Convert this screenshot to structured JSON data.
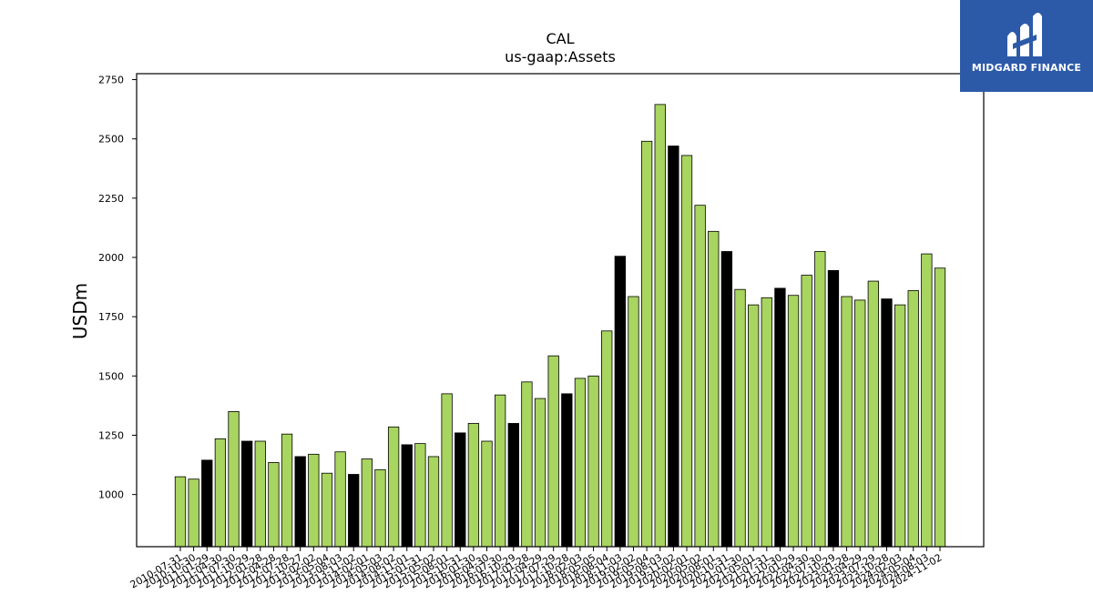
{
  "chart_data": {
    "type": "bar",
    "title": "CAL",
    "subtitle": "us-gaap:Assets",
    "xlabel": "",
    "ylabel": "USDm",
    "ylim": [
      780,
      2775
    ],
    "yticks": [
      1000,
      1250,
      1500,
      1750,
      2000,
      2250,
      2500,
      2750
    ],
    "grid": false,
    "colors": {
      "quarterly": "#a8d460",
      "annual": "#000000",
      "edge": "#000000"
    },
    "categories": [
      "2010-07-31",
      "2010-10-30",
      "2011-01-29",
      "2011-04-30",
      "2011-07-30",
      "2011-10-29",
      "2012-01-28",
      "2012-04-28",
      "2012-07-28",
      "2012-10-27",
      "2013-02-02",
      "2013-05-04",
      "2013-08-03",
      "2013-11-02",
      "2014-02-01",
      "2014-05-03",
      "2014-08-02",
      "2014-11-01",
      "2015-01-31",
      "2015-05-02",
      "2015-08-01",
      "2015-10-31",
      "2016-01-30",
      "2016-04-30",
      "2016-07-30",
      "2016-10-29",
      "2017-01-28",
      "2017-04-29",
      "2017-07-29",
      "2017-10-28",
      "2018-02-03",
      "2018-05-05",
      "2018-08-04",
      "2018-11-03",
      "2019-02-02",
      "2019-05-04",
      "2019-08-03",
      "2019-11-02",
      "2020-02-01",
      "2020-05-02",
      "2020-08-01",
      "2020-10-31",
      "2021-01-30",
      "2021-05-01",
      "2021-07-31",
      "2021-10-30",
      "2022-01-29",
      "2022-04-30",
      "2022-07-30",
      "2022-10-29",
      "2023-01-28",
      "2023-04-29",
      "2023-07-29",
      "2023-10-28",
      "2024-02-03",
      "2024-05-04",
      "2024-08-03",
      "2024-11-02"
    ],
    "values": [
      1075,
      1065,
      1145,
      1235,
      1350,
      1225,
      1225,
      1135,
      1255,
      1160,
      1170,
      1090,
      1180,
      1085,
      1150,
      1105,
      1285,
      1210,
      1215,
      1160,
      1425,
      1260,
      1300,
      1225,
      1420,
      1300,
      1475,
      1405,
      1585,
      1425,
      1490,
      1500,
      1690,
      2005,
      1835,
      2490,
      2645,
      2470,
      2430,
      2220,
      2110,
      2025,
      1865,
      1800,
      1830,
      1870,
      1840,
      1925,
      2025,
      1945,
      1835,
      1820,
      1900,
      1825,
      1800,
      1860,
      2015,
      1955
    ],
    "annual": [
      false,
      false,
      true,
      false,
      false,
      true,
      false,
      false,
      false,
      true,
      false,
      false,
      false,
      true,
      false,
      false,
      false,
      true,
      false,
      false,
      false,
      true,
      false,
      false,
      false,
      true,
      false,
      false,
      false,
      true,
      false,
      false,
      false,
      true,
      false,
      false,
      false,
      true,
      false,
      false,
      false,
      true,
      false,
      false,
      false,
      true,
      false,
      false,
      false,
      true,
      false,
      false,
      false,
      true,
      false,
      false,
      false,
      false
    ]
  },
  "logo": {
    "text": "MIDGARD FINANCE",
    "icon": "midgard-logo-icon",
    "bg": "#2d5aa8"
  }
}
